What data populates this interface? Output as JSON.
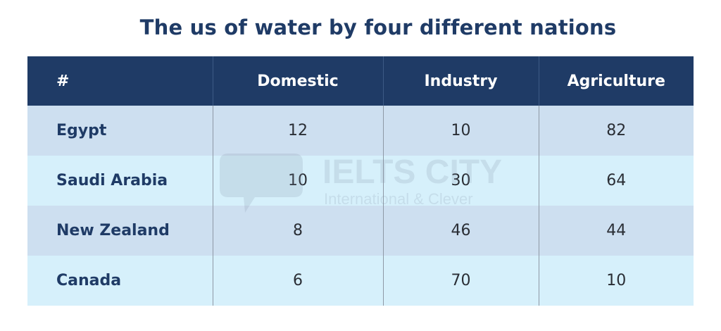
{
  "chart_data": {
    "type": "table",
    "title": "The us of water by four different nations",
    "columns": [
      "#",
      "Domestic",
      "Industry",
      "Agriculture"
    ],
    "rows": [
      {
        "name": "Egypt",
        "values": [
          "12",
          "10",
          "82"
        ]
      },
      {
        "name": "Saudi Arabia",
        "values": [
          "10",
          "30",
          "64"
        ]
      },
      {
        "name": "New Zealand",
        "values": [
          "8",
          "46",
          "44"
        ]
      },
      {
        "name": "Canada",
        "values": [
          "6",
          "70",
          "10"
        ]
      }
    ]
  },
  "watermark": {
    "brand": "IELTS CITY",
    "tagline": "International & Clever"
  },
  "colors": {
    "header_bg": "#1f3b66",
    "row_odd": "#cddff0",
    "row_even": "#d6f0fb",
    "title": "#1f3b66"
  }
}
